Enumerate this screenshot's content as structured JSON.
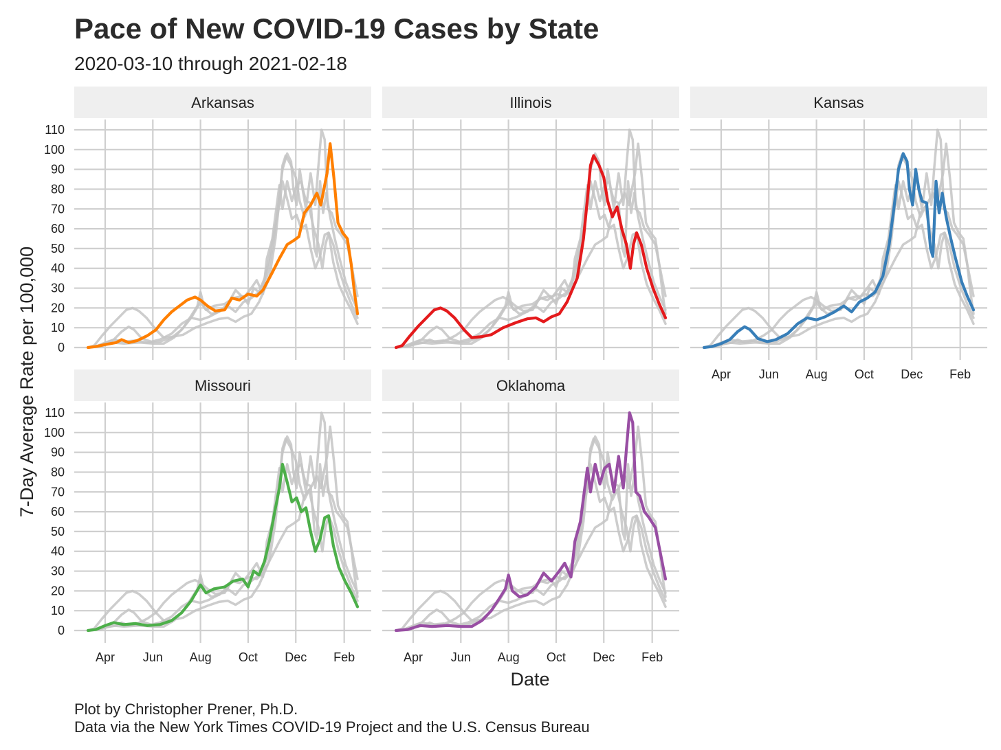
{
  "title": "Pace of New COVID-19 Cases by State",
  "subtitle": "2020-03-10 through 2021-02-18",
  "xlabel": "Date",
  "ylabel": "7-Day Average Rate per 100,000",
  "caption_line1": "Plot by Christopher Prener, Ph.D.",
  "caption_line2": "Data via the New York Times COVID-19 Project and the U.S. Census Bureau",
  "chart_data": {
    "type": "line",
    "x_range": [
      "2020-03-10",
      "2021-02-18"
    ],
    "x_ticks": [
      {
        "date": "2020-04-01",
        "label": "Apr"
      },
      {
        "date": "2020-06-01",
        "label": "Jun"
      },
      {
        "date": "2020-08-01",
        "label": "Aug"
      },
      {
        "date": "2020-10-01",
        "label": "Oct"
      },
      {
        "date": "2020-12-01",
        "label": "Dec"
      },
      {
        "date": "2021-02-01",
        "label": "Feb"
      }
    ],
    "ylim": [
      0,
      110
    ],
    "y_ticks": [
      0,
      10,
      20,
      30,
      40,
      50,
      60,
      70,
      80,
      90,
      100,
      110
    ],
    "grid": true,
    "facet_note": "each panel highlights one state; other states drawn in grey",
    "series": [
      {
        "name": "Arkansas",
        "color": "#ff7f00",
        "points": [
          [
            "2020-03-10",
            0
          ],
          [
            "2020-03-20",
            0.5
          ],
          [
            "2020-04-01",
            1.5
          ],
          [
            "2020-04-15",
            2.5
          ],
          [
            "2020-04-22",
            4
          ],
          [
            "2020-05-01",
            2.5
          ],
          [
            "2020-05-12",
            3.5
          ],
          [
            "2020-05-25",
            6
          ],
          [
            "2020-06-05",
            9
          ],
          [
            "2020-06-15",
            14
          ],
          [
            "2020-06-25",
            18
          ],
          [
            "2020-07-05",
            21
          ],
          [
            "2020-07-15",
            24
          ],
          [
            "2020-07-25",
            25.5
          ],
          [
            "2020-08-01",
            24
          ],
          [
            "2020-08-10",
            21
          ],
          [
            "2020-08-20",
            18.5
          ],
          [
            "2020-09-01",
            19
          ],
          [
            "2020-09-10",
            25
          ],
          [
            "2020-09-20",
            24
          ],
          [
            "2020-10-01",
            27
          ],
          [
            "2020-10-12",
            26
          ],
          [
            "2020-10-20",
            29
          ],
          [
            "2020-11-01",
            38
          ],
          [
            "2020-11-10",
            45
          ],
          [
            "2020-11-20",
            52
          ],
          [
            "2020-11-28",
            54
          ],
          [
            "2020-12-05",
            56
          ],
          [
            "2020-12-12",
            68
          ],
          [
            "2020-12-20",
            72
          ],
          [
            "2020-12-28",
            78
          ],
          [
            "2021-01-02",
            72
          ],
          [
            "2021-01-06",
            80
          ],
          [
            "2021-01-10",
            88
          ],
          [
            "2021-01-14",
            103
          ],
          [
            "2021-01-19",
            85
          ],
          [
            "2021-01-24",
            63
          ],
          [
            "2021-01-30",
            58
          ],
          [
            "2021-02-05",
            55
          ],
          [
            "2021-02-10",
            42
          ],
          [
            "2021-02-14",
            28
          ],
          [
            "2021-02-18",
            17
          ]
        ]
      },
      {
        "name": "Illinois",
        "color": "#e41a1c",
        "points": [
          [
            "2020-03-10",
            0
          ],
          [
            "2020-03-18",
            1
          ],
          [
            "2020-03-28",
            6
          ],
          [
            "2020-04-08",
            11
          ],
          [
            "2020-04-18",
            15
          ],
          [
            "2020-04-28",
            19
          ],
          [
            "2020-05-06",
            20
          ],
          [
            "2020-05-14",
            18.5
          ],
          [
            "2020-05-24",
            15
          ],
          [
            "2020-06-05",
            9
          ],
          [
            "2020-06-15",
            5
          ],
          [
            "2020-06-28",
            5.5
          ],
          [
            "2020-07-10",
            6.5
          ],
          [
            "2020-07-25",
            10
          ],
          [
            "2020-08-10",
            12.5
          ],
          [
            "2020-08-25",
            14.5
          ],
          [
            "2020-09-05",
            15
          ],
          [
            "2020-09-15",
            13
          ],
          [
            "2020-09-25",
            15.5
          ],
          [
            "2020-10-05",
            17
          ],
          [
            "2020-10-15",
            23
          ],
          [
            "2020-10-28",
            35
          ],
          [
            "2020-11-05",
            55
          ],
          [
            "2020-11-10",
            75
          ],
          [
            "2020-11-14",
            92
          ],
          [
            "2020-11-18",
            97
          ],
          [
            "2020-11-25",
            92
          ],
          [
            "2020-12-01",
            86
          ],
          [
            "2020-12-06",
            74
          ],
          [
            "2020-12-12",
            66
          ],
          [
            "2020-12-18",
            71
          ],
          [
            "2020-12-24",
            60
          ],
          [
            "2020-12-30",
            52
          ],
          [
            "2021-01-04",
            40
          ],
          [
            "2021-01-08",
            52
          ],
          [
            "2021-01-12",
            58
          ],
          [
            "2021-01-18",
            52
          ],
          [
            "2021-01-25",
            40
          ],
          [
            "2021-02-02",
            30
          ],
          [
            "2021-02-10",
            22
          ],
          [
            "2021-02-18",
            15
          ]
        ]
      },
      {
        "name": "Kansas",
        "color": "#377eb8",
        "points": [
          [
            "2020-03-10",
            0
          ],
          [
            "2020-03-20",
            0.5
          ],
          [
            "2020-04-01",
            2
          ],
          [
            "2020-04-12",
            4
          ],
          [
            "2020-04-22",
            8
          ],
          [
            "2020-05-01",
            10.5
          ],
          [
            "2020-05-08",
            9
          ],
          [
            "2020-05-18",
            4.5
          ],
          [
            "2020-05-30",
            3
          ],
          [
            "2020-06-10",
            4
          ],
          [
            "2020-06-25",
            7
          ],
          [
            "2020-07-08",
            12
          ],
          [
            "2020-07-20",
            15
          ],
          [
            "2020-08-01",
            14
          ],
          [
            "2020-08-12",
            15.5
          ],
          [
            "2020-08-24",
            18
          ],
          [
            "2020-09-05",
            21
          ],
          [
            "2020-09-15",
            18
          ],
          [
            "2020-09-25",
            23
          ],
          [
            "2020-10-05",
            25
          ],
          [
            "2020-10-15",
            28
          ],
          [
            "2020-10-25",
            36
          ],
          [
            "2020-11-02",
            52
          ],
          [
            "2020-11-08",
            70
          ],
          [
            "2020-11-14",
            90
          ],
          [
            "2020-11-20",
            98
          ],
          [
            "2020-11-25",
            94
          ],
          [
            "2020-11-28",
            80
          ],
          [
            "2020-12-02",
            72
          ],
          [
            "2020-12-06",
            90
          ],
          [
            "2020-12-10",
            80
          ],
          [
            "2020-12-14",
            74
          ],
          [
            "2020-12-20",
            73
          ],
          [
            "2020-12-25",
            50
          ],
          [
            "2020-12-28",
            46
          ],
          [
            "2021-01-01",
            84
          ],
          [
            "2021-01-05",
            68
          ],
          [
            "2021-01-09",
            78
          ],
          [
            "2021-01-14",
            66
          ],
          [
            "2021-01-20",
            55
          ],
          [
            "2021-01-26",
            45
          ],
          [
            "2021-02-03",
            33
          ],
          [
            "2021-02-10",
            26
          ],
          [
            "2021-02-18",
            19
          ]
        ]
      },
      {
        "name": "Missouri",
        "color": "#4daf4a",
        "points": [
          [
            "2020-03-10",
            0
          ],
          [
            "2020-03-20",
            0.5
          ],
          [
            "2020-04-01",
            2.5
          ],
          [
            "2020-04-12",
            4
          ],
          [
            "2020-04-25",
            3
          ],
          [
            "2020-05-10",
            3.5
          ],
          [
            "2020-05-25",
            2.5
          ],
          [
            "2020-06-10",
            3
          ],
          [
            "2020-06-25",
            5
          ],
          [
            "2020-07-08",
            9
          ],
          [
            "2020-07-20",
            15
          ],
          [
            "2020-08-01",
            23
          ],
          [
            "2020-08-08",
            19
          ],
          [
            "2020-08-18",
            21
          ],
          [
            "2020-09-01",
            22
          ],
          [
            "2020-09-12",
            25
          ],
          [
            "2020-09-24",
            26
          ],
          [
            "2020-10-01",
            22
          ],
          [
            "2020-10-08",
            30
          ],
          [
            "2020-10-15",
            28
          ],
          [
            "2020-10-22",
            35
          ],
          [
            "2020-10-28",
            45
          ],
          [
            "2020-11-04",
            60
          ],
          [
            "2020-11-10",
            72
          ],
          [
            "2020-11-14",
            84
          ],
          [
            "2020-11-20",
            75
          ],
          [
            "2020-11-26",
            65
          ],
          [
            "2020-12-02",
            67
          ],
          [
            "2020-12-08",
            60
          ],
          [
            "2020-12-14",
            62
          ],
          [
            "2020-12-20",
            50
          ],
          [
            "2020-12-26",
            40
          ],
          [
            "2021-01-01",
            46
          ],
          [
            "2021-01-07",
            57
          ],
          [
            "2021-01-12",
            58
          ],
          [
            "2021-01-18",
            43
          ],
          [
            "2021-01-25",
            32
          ],
          [
            "2021-02-02",
            25
          ],
          [
            "2021-02-10",
            19
          ],
          [
            "2021-02-18",
            12
          ]
        ]
      },
      {
        "name": "Oklahoma",
        "color": "#984ea3",
        "points": [
          [
            "2020-03-10",
            0
          ],
          [
            "2020-03-25",
            0.5
          ],
          [
            "2020-04-10",
            2.5
          ],
          [
            "2020-04-25",
            2
          ],
          [
            "2020-05-15",
            2.5
          ],
          [
            "2020-06-01",
            2
          ],
          [
            "2020-06-15",
            2
          ],
          [
            "2020-06-28",
            5
          ],
          [
            "2020-07-10",
            10
          ],
          [
            "2020-07-20",
            16
          ],
          [
            "2020-07-28",
            21
          ],
          [
            "2020-08-01",
            28
          ],
          [
            "2020-08-06",
            20
          ],
          [
            "2020-08-15",
            17
          ],
          [
            "2020-08-25",
            18
          ],
          [
            "2020-09-05",
            22
          ],
          [
            "2020-09-15",
            29
          ],
          [
            "2020-09-25",
            25
          ],
          [
            "2020-10-05",
            30
          ],
          [
            "2020-10-12",
            34
          ],
          [
            "2020-10-20",
            27
          ],
          [
            "2020-10-25",
            45
          ],
          [
            "2020-11-01",
            55
          ],
          [
            "2020-11-06",
            70
          ],
          [
            "2020-11-10",
            82
          ],
          [
            "2020-11-14",
            70
          ],
          [
            "2020-11-20",
            84
          ],
          [
            "2020-11-26",
            74
          ],
          [
            "2020-12-02",
            82
          ],
          [
            "2020-12-08",
            84
          ],
          [
            "2020-12-14",
            70
          ],
          [
            "2020-12-20",
            88
          ],
          [
            "2020-12-26",
            72
          ],
          [
            "2020-12-30",
            92
          ],
          [
            "2021-01-03",
            110
          ],
          [
            "2021-01-07",
            105
          ],
          [
            "2021-01-11",
            70
          ],
          [
            "2021-01-16",
            68
          ],
          [
            "2021-01-22",
            60
          ],
          [
            "2021-01-28",
            57
          ],
          [
            "2021-02-05",
            52
          ],
          [
            "2021-02-12",
            38
          ],
          [
            "2021-02-18",
            26
          ]
        ]
      }
    ]
  }
}
